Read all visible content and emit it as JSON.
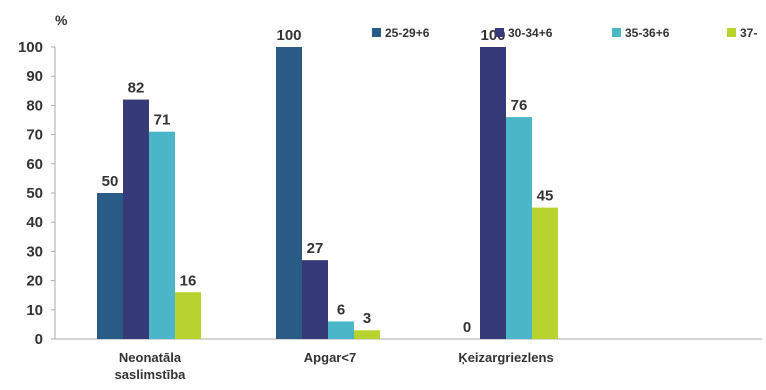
{
  "chart_data": {
    "type": "bar",
    "ylabel": "%",
    "ylim": [
      0,
      100
    ],
    "yticks": [
      0,
      10,
      20,
      30,
      40,
      50,
      60,
      70,
      80,
      90,
      100
    ],
    "categories": [
      [
        "Neonatāla",
        "saslimstība"
      ],
      [
        "Apgar<7"
      ],
      [
        "Ķeizargriezlens"
      ]
    ],
    "legend_position": "top",
    "series": [
      {
        "name": "25-29+6",
        "color": "#2a5a86",
        "values": [
          50,
          100,
          0
        ]
      },
      {
        "name": "30-34+6",
        "color": "#373a78",
        "values": [
          82,
          27,
          100
        ]
      },
      {
        "name": "35-36+6",
        "color": "#4ab6c8",
        "values": [
          71,
          6,
          76
        ]
      },
      {
        "name": "37-",
        "color": "#b8d330",
        "values": [
          16,
          3,
          45
        ]
      }
    ]
  }
}
